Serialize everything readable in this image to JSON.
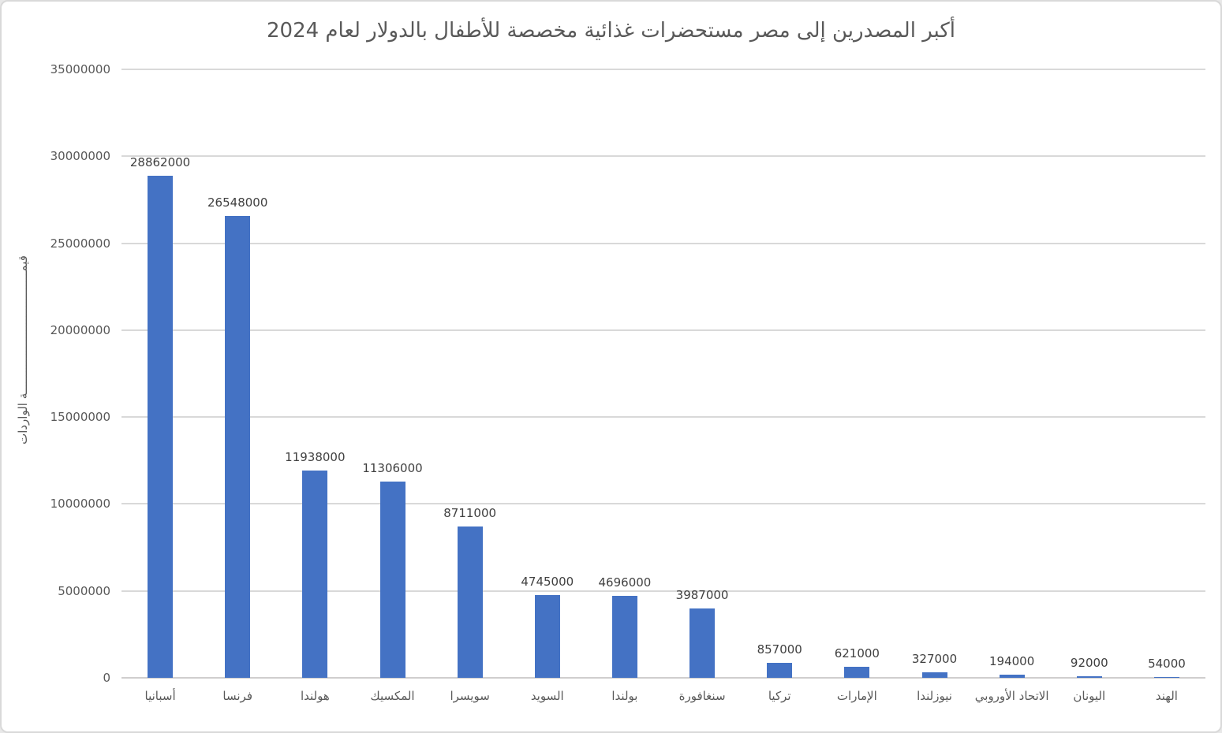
{
  "chart_data": {
    "type": "bar",
    "title": "أكبر المصدرين إلى مصر مستحضرات غذائية مخصصة للأطفال بالدولار لعام 2024",
    "ylabel": "قيمـــــــــــــــــــــــــــــــــــة الواردات",
    "xlabel": "",
    "categories": [
      "أسبانيا",
      "فرنسا",
      "هولندا",
      "المكسيك",
      "سويسرا",
      "السويد",
      "بولندا",
      "سنغافورة",
      "تركيا",
      "الإمارات",
      "نيوزلندا",
      "الاتحاد الأوروبي",
      "اليونان",
      "الهند"
    ],
    "values": [
      28862000,
      26548000,
      11938000,
      11306000,
      8711000,
      4745000,
      4696000,
      3987000,
      857000,
      621000,
      327000,
      194000,
      92000,
      54000
    ],
    "data_labels": [
      "28862000",
      "26548000",
      "11938000",
      "11306000",
      "8711000",
      "4745000",
      "4696000",
      "3987000",
      "857000",
      "621000",
      "327000",
      "194000",
      "92000",
      "54000"
    ],
    "yticks": [
      0,
      5000000,
      10000000,
      15000000,
      20000000,
      25000000,
      30000000,
      35000000
    ],
    "ytick_labels": [
      "0",
      "5000000",
      "10000000",
      "15000000",
      "20000000",
      "25000000",
      "30000000",
      "35000000"
    ],
    "ylim": [
      0,
      35000000
    ],
    "grid": true,
    "legend": false,
    "bar_color": "#4472C4",
    "gridline_color": "#D9D9D9",
    "axis_line_color": "#D0CECE",
    "tick_text_color": "#595959",
    "value_label_color": "#404040",
    "title_color": "#595959"
  }
}
